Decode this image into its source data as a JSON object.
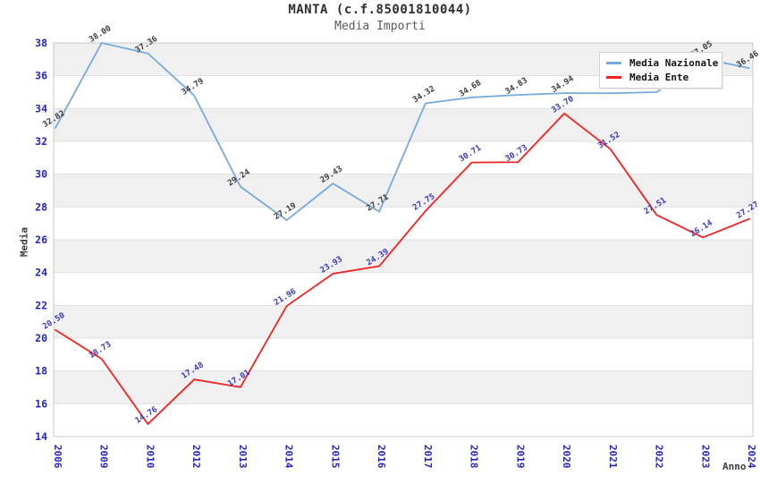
{
  "chart_data": {
    "type": "line",
    "title": "MANTA (c.f.85001810044)",
    "subtitle": "Media Importi",
    "xlabel": "Anno",
    "ylabel": "Media",
    "categories": [
      "2006",
      "2009",
      "2010",
      "2012",
      "2013",
      "2014",
      "2015",
      "2016",
      "2017",
      "2018",
      "2019",
      "2020",
      "2021",
      "2022",
      "2023",
      "2024"
    ],
    "ylim": [
      14,
      38
    ],
    "ytick_step": 2,
    "grid": "horizontal-bands-alternating",
    "legend_position": "top-right",
    "series": [
      {
        "name": "Media Nazionale",
        "color": "#74aadf",
        "label_color": "#3c3c3c",
        "values": [
          32.82,
          38.0,
          37.36,
          34.79,
          29.24,
          27.19,
          29.43,
          27.71,
          34.32,
          34.68,
          34.83,
          34.94,
          34.93,
          35.0,
          37.05,
          36.46
        ],
        "point_labels": [
          "32.82",
          "38.00",
          "37.36",
          "34.79",
          "29.24",
          "27.19",
          "29.43",
          "27.71",
          "34.32",
          "34.68",
          "34.83",
          "34.94",
          "",
          "",
          "37.05",
          "36.46"
        ]
      },
      {
        "name": "Media Ente",
        "color": "#f42121",
        "label_color": "#3838c0",
        "values": [
          20.5,
          18.73,
          14.76,
          17.48,
          17.01,
          21.96,
          23.93,
          24.39,
          27.75,
          30.71,
          30.73,
          33.7,
          31.52,
          27.51,
          26.14,
          27.27
        ],
        "point_labels": [
          "20.50",
          "18.73",
          "14.76",
          "17.48",
          "17.01",
          "21.96",
          "23.93",
          "24.39",
          "27.75",
          "30.71",
          "30.73",
          "33.70",
          "31.52",
          "27.51",
          "26.14",
          "27.27"
        ]
      }
    ],
    "style": {
      "tick_color": "#2323cb",
      "band_color": "#f0f0f0",
      "grid_color": "#e0e0e0",
      "frame_color": "#c9c9c9"
    }
  }
}
